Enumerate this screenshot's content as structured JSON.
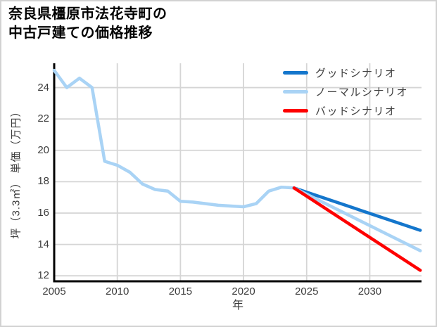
{
  "title": {
    "line1": "奈良県橿原市法花寺町の",
    "line2": "中古戸建ての価格推移"
  },
  "chart_data": {
    "type": "line",
    "title": "奈良県橿原市法花寺町の中古戸建ての価格推移",
    "xlabel": "年",
    "ylabel": "坪（3.3㎡） 単価（万円）",
    "xlim": [
      2005,
      2034.1
    ],
    "ylim": [
      11.65,
      25.55
    ],
    "x_ticks": [
      2005,
      2010,
      2015,
      2020,
      2025,
      2030
    ],
    "y_ticks": [
      12,
      14,
      16,
      18,
      20,
      22,
      24
    ],
    "grid": true,
    "legend_position": "top-right",
    "colors": {
      "axis": "#000000",
      "grid": "#d5d5d5",
      "tick_text": "#3b3b3b",
      "good": "#1476cc",
      "normal": "#a9d3f5",
      "bad": "#fe0000"
    },
    "series": [
      {
        "id": "history",
        "color": "#a9d3f5",
        "x": [
          2005,
          2006,
          2007,
          2008,
          2009,
          2010,
          2011,
          2012,
          2013,
          2014,
          2015,
          2016,
          2017,
          2018,
          2019,
          2020,
          2021,
          2022,
          2023,
          2024
        ],
        "y": [
          25.1,
          24.0,
          24.6,
          24.0,
          19.3,
          19.05,
          18.6,
          17.85,
          17.5,
          17.4,
          16.75,
          16.7,
          16.6,
          16.5,
          16.45,
          16.4,
          16.6,
          17.4,
          17.65,
          17.6
        ]
      },
      {
        "id": "good-scenario",
        "name": "グッドシナリオ",
        "color": "#1476cc",
        "x": [
          2024,
          2034
        ],
        "y": [
          17.6,
          14.9
        ]
      },
      {
        "id": "normal-scenario",
        "name": "ノーマルシナリオ",
        "color": "#a9d3f5",
        "x": [
          2024,
          2034
        ],
        "y": [
          17.6,
          13.6
        ]
      },
      {
        "id": "bad-scenario",
        "name": "バッドシナリオ",
        "color": "#fe0000",
        "x": [
          2024,
          2034
        ],
        "y": [
          17.6,
          12.35
        ]
      }
    ]
  }
}
